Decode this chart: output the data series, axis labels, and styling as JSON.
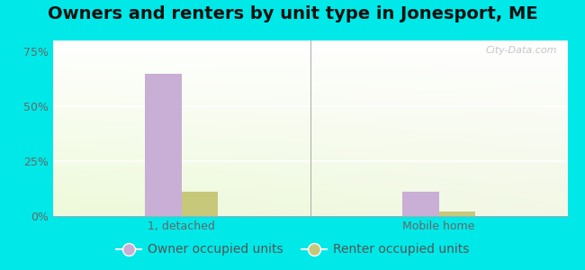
{
  "title": "Owners and renters by unit type in Jonesport, ME",
  "categories": [
    "1, detached",
    "Mobile home"
  ],
  "owner_values": [
    65.0,
    11.0
  ],
  "renter_values": [
    11.0,
    2.0
  ],
  "owner_color": "#c9aed6",
  "renter_color": "#c8c87a",
  "yticks": [
    0,
    25,
    50,
    75
  ],
  "ytick_labels": [
    "0%",
    "25%",
    "50%",
    "75%"
  ],
  "ylim": [
    0,
    80
  ],
  "bar_width": 0.28,
  "group_positions": [
    1,
    3
  ],
  "xlim": [
    0,
    4
  ],
  "bg_outer_color": "#00e8e8",
  "watermark": "City-Data.com",
  "legend_labels": [
    "Owner occupied units",
    "Renter occupied units"
  ],
  "title_fontsize": 14,
  "axis_fontsize": 9,
  "legend_fontsize": 10
}
